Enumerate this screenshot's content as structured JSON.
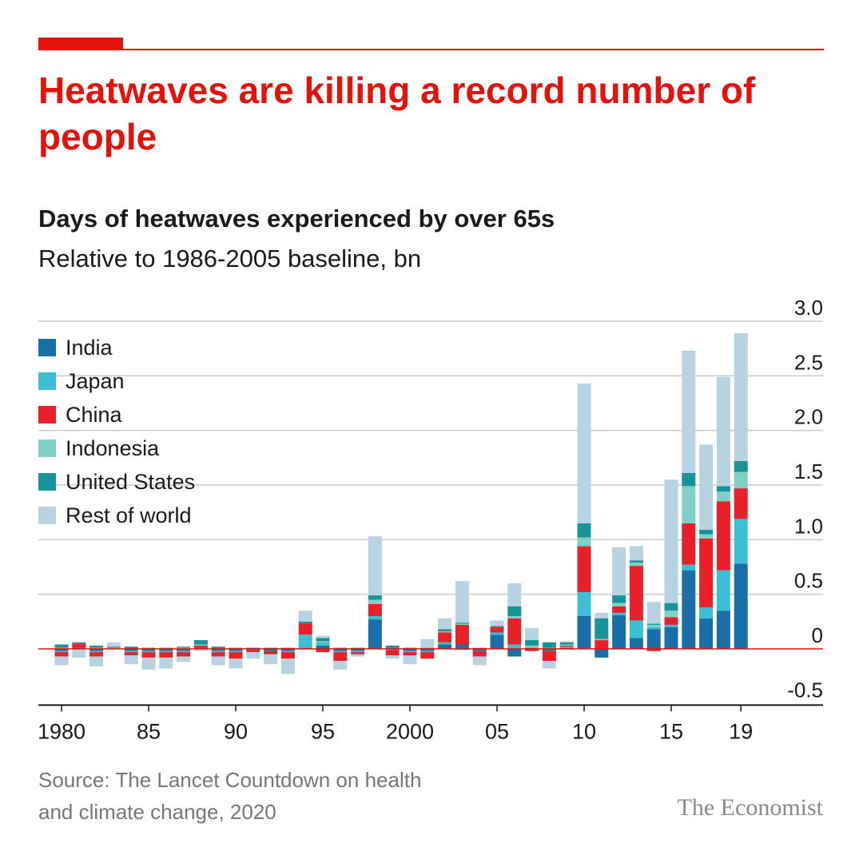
{
  "headline": "Heatwaves are killing a record number of people",
  "subtitle": "Days of heatwaves experienced by over 65s",
  "subtitle2": "Relative to 1986-2005 baseline, bn",
  "source_line1": "Source: The Lancet Countdown on health",
  "source_line2": "and climate change, 2020",
  "brand": "The Economist",
  "colors": {
    "accent": "#e3120b",
    "India": "#1b6fa8",
    "Japan": "#3cbfd4",
    "China": "#e8202a",
    "Indonesia": "#7fd1c6",
    "United States": "#17949a",
    "Rest of world": "#b7d2e0"
  },
  "chart_data": {
    "type": "bar",
    "stacked": true,
    "legend_position": "top-left",
    "grid": true,
    "ylim": [
      -0.5,
      3.0
    ],
    "y_ticks": [
      "3.0",
      "2.5",
      "2.0",
      "1.5",
      "1.0",
      "0.5",
      "0",
      "-0.5"
    ],
    "x_tick_labels": [
      {
        "year": 1980,
        "label": "1980"
      },
      {
        "year": 1985,
        "label": "85"
      },
      {
        "year": 1990,
        "label": "90"
      },
      {
        "year": 1995,
        "label": "95"
      },
      {
        "year": 2000,
        "label": "2000"
      },
      {
        "year": 2005,
        "label": "05"
      },
      {
        "year": 2010,
        "label": "10"
      },
      {
        "year": 2015,
        "label": "15"
      },
      {
        "year": 2019,
        "label": "19"
      }
    ],
    "categories": [
      1980,
      1981,
      1982,
      1983,
      1984,
      1985,
      1986,
      1987,
      1988,
      1989,
      1990,
      1991,
      1992,
      1993,
      1994,
      1995,
      1996,
      1997,
      1998,
      1999,
      2000,
      2001,
      2002,
      2003,
      2004,
      2005,
      2006,
      2007,
      2008,
      2009,
      2010,
      2011,
      2012,
      2013,
      2014,
      2015,
      2016,
      2017,
      2018,
      2019
    ],
    "series": [
      {
        "name": "India",
        "values": [
          -0.02,
          0.01,
          -0.02,
          0,
          -0.02,
          -0.02,
          -0.02,
          -0.02,
          0.01,
          -0.02,
          -0.02,
          -0.01,
          -0.02,
          -0.02,
          0.01,
          0.03,
          -0.02,
          -0.02,
          0.27,
          0.01,
          -0.02,
          -0.02,
          0.04,
          0.04,
          -0.02,
          0.13,
          -0.07,
          0.01,
          -0.02,
          0.01,
          0.3,
          -0.08,
          0.31,
          0.1,
          0.18,
          0.2,
          0.72,
          0.28,
          0.35,
          0.78
        ]
      },
      {
        "name": "Japan",
        "values": [
          -0.01,
          0,
          -0.01,
          0,
          -0.01,
          -0.01,
          -0.01,
          -0.01,
          0,
          -0.01,
          -0.01,
          0,
          0,
          -0.01,
          0.12,
          0.03,
          -0.01,
          -0.01,
          0.03,
          -0.01,
          -0.01,
          -0.01,
          0.02,
          -0.01,
          0,
          0.02,
          0.04,
          0,
          0.01,
          0.01,
          0.22,
          0,
          0.02,
          0.16,
          0.02,
          0.02,
          0.05,
          0.1,
          0.37,
          0.41
        ]
      },
      {
        "name": "China",
        "values": [
          -0.04,
          0.04,
          -0.04,
          0,
          -0.03,
          -0.05,
          -0.05,
          -0.04,
          0.02,
          -0.04,
          -0.06,
          -0.02,
          -0.03,
          -0.06,
          0.1,
          -0.03,
          -0.08,
          -0.02,
          0.11,
          -0.05,
          -0.03,
          -0.06,
          0.09,
          0.18,
          -0.05,
          0.05,
          0.24,
          -0.02,
          -0.09,
          0.01,
          0.42,
          0.08,
          0.06,
          0.5,
          -0.02,
          0.07,
          0.38,
          0.63,
          0.63,
          0.28
        ]
      },
      {
        "name": "Indonesia",
        "values": [
          0.01,
          0,
          0.01,
          0.01,
          0,
          0,
          0,
          0.01,
          0.01,
          0,
          0,
          0,
          0,
          0,
          0,
          0.01,
          0,
          0,
          0.04,
          0,
          0,
          0,
          0.01,
          0.01,
          0,
          0,
          0.02,
          0.02,
          0,
          0.01,
          0.08,
          0.01,
          0.03,
          0.03,
          0.02,
          0.06,
          0.34,
          0.04,
          0.09,
          0.15
        ]
      },
      {
        "name": "United States",
        "values": [
          0.03,
          0.01,
          0.02,
          0.01,
          0.02,
          0.01,
          0.01,
          0.01,
          0.04,
          0.02,
          0.01,
          0.01,
          0.01,
          0.01,
          0.02,
          0.03,
          0.01,
          0.01,
          0.04,
          0.02,
          0.01,
          0.01,
          0.02,
          0.01,
          0.01,
          0.01,
          0.09,
          0.05,
          0.05,
          0.02,
          0.13,
          0.19,
          0.07,
          0.02,
          0.01,
          0.07,
          0.12,
          0.04,
          0.05,
          0.1
        ]
      },
      {
        "name": "Rest of world",
        "values": [
          -0.08,
          -0.08,
          -0.09,
          0.04,
          -0.08,
          -0.11,
          -0.1,
          -0.05,
          -0.02,
          -0.08,
          -0.09,
          -0.06,
          -0.09,
          -0.14,
          0.1,
          0.02,
          -0.08,
          -0.02,
          0.54,
          -0.03,
          -0.08,
          0.08,
          0.1,
          0.38,
          -0.08,
          0.05,
          0.21,
          0.11,
          -0.07,
          0.01,
          1.28,
          0.05,
          0.44,
          0.13,
          0.2,
          1.13,
          1.12,
          0.78,
          1.0,
          1.17
        ]
      }
    ]
  }
}
